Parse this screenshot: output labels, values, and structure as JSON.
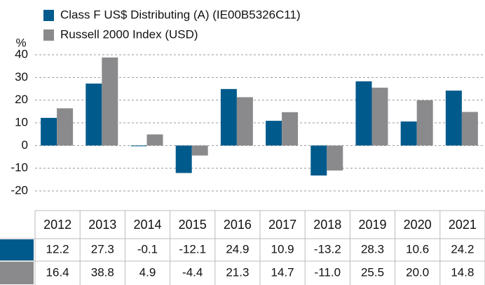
{
  "chart_data": {
    "type": "bar",
    "y_label": "%",
    "categories": [
      "2012",
      "2013",
      "2014",
      "2015",
      "2016",
      "2017",
      "2018",
      "2019",
      "2020",
      "2021"
    ],
    "series": [
      {
        "name": "Class F US$ Distributing (A) (IE00B5326C11)",
        "color": "#005a8c",
        "values": [
          12.2,
          27.3,
          -0.1,
          -12.1,
          24.9,
          10.9,
          -13.2,
          28.3,
          10.6,
          24.2
        ],
        "value_labels": [
          "12.2",
          "27.3",
          "-0.1",
          "-12.1",
          "24.9",
          "10.9",
          "-13.2",
          "28.3",
          "10.6",
          "24.2"
        ]
      },
      {
        "name": "Russell 2000 Index (USD)",
        "color": "#8a8a8c",
        "values": [
          16.4,
          38.8,
          4.9,
          -4.4,
          21.3,
          14.7,
          -11.0,
          25.5,
          20.0,
          14.8
        ],
        "value_labels": [
          "16.4",
          "38.8",
          "4.9",
          "-4.4",
          "21.3",
          "14.7",
          "-11.0",
          "25.5",
          "20.0",
          "14.8"
        ]
      }
    ],
    "ylim": [
      -20,
      40
    ],
    "yticks": [
      -20,
      -10,
      0,
      10,
      20,
      30,
      40
    ],
    "grid": true
  }
}
